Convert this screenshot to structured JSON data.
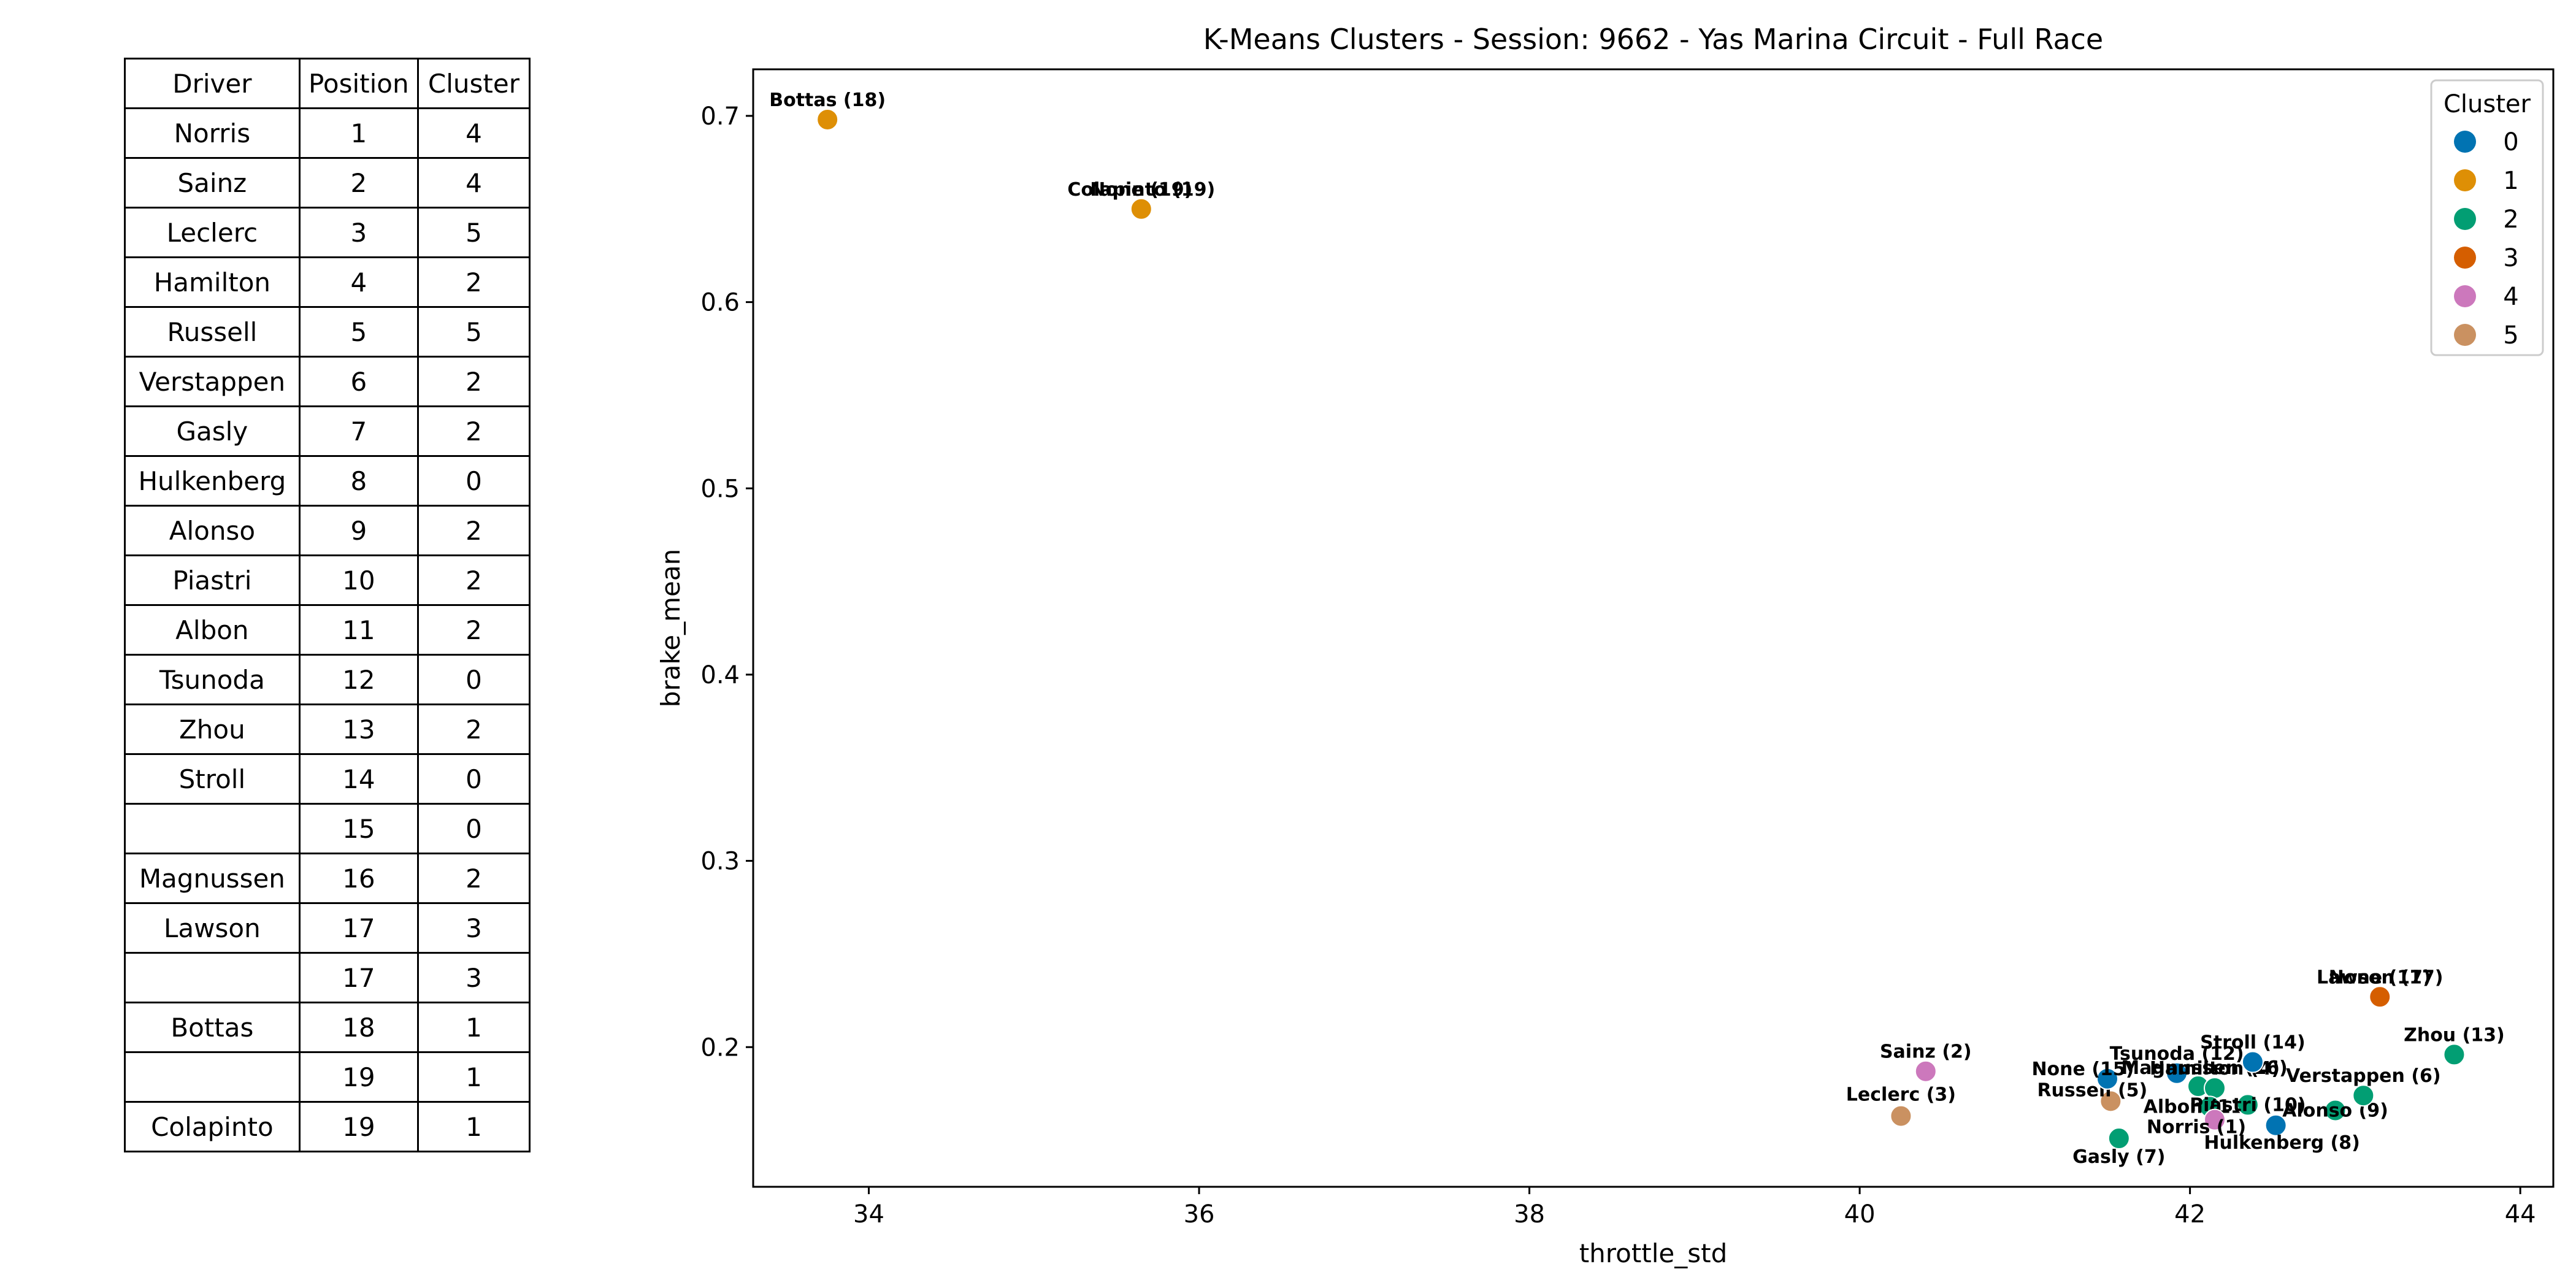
{
  "table": {
    "headers": [
      "Driver",
      "Position",
      "Cluster"
    ],
    "rows": [
      [
        "Norris",
        "1",
        "4"
      ],
      [
        "Sainz",
        "2",
        "4"
      ],
      [
        "Leclerc",
        "3",
        "5"
      ],
      [
        "Hamilton",
        "4",
        "2"
      ],
      [
        "Russell",
        "5",
        "5"
      ],
      [
        "Verstappen",
        "6",
        "2"
      ],
      [
        "Gasly",
        "7",
        "2"
      ],
      [
        "Hulkenberg",
        "8",
        "0"
      ],
      [
        "Alonso",
        "9",
        "2"
      ],
      [
        "Piastri",
        "10",
        "2"
      ],
      [
        "Albon",
        "11",
        "2"
      ],
      [
        "Tsunoda",
        "12",
        "0"
      ],
      [
        "Zhou",
        "13",
        "2"
      ],
      [
        "Stroll",
        "14",
        "0"
      ],
      [
        "",
        "15",
        "0"
      ],
      [
        "Magnussen",
        "16",
        "2"
      ],
      [
        "Lawson",
        "17",
        "3"
      ],
      [
        "",
        "17",
        "3"
      ],
      [
        "Bottas",
        "18",
        "1"
      ],
      [
        "",
        "19",
        "1"
      ],
      [
        "Colapinto",
        "19",
        "1"
      ]
    ]
  },
  "chart_data": {
    "type": "scatter",
    "title": "K-Means Clusters - Session: 9662 - Yas Marina Circuit - Full Race",
    "xlabel": "throttle_std",
    "ylabel": "brake_mean",
    "xlim": [
      33.3,
      44.2
    ],
    "ylim": [
      0.125,
      0.725
    ],
    "xticks": [
      "34",
      "36",
      "38",
      "40",
      "42",
      "44"
    ],
    "yticks": [
      "0.2",
      "0.3",
      "0.4",
      "0.5",
      "0.6",
      "0.7"
    ],
    "legend": {
      "title": "Cluster",
      "placement": "top-right",
      "entries": [
        {
          "label": "0",
          "color": "#0173b2"
        },
        {
          "label": "1",
          "color": "#de8f05"
        },
        {
          "label": "2",
          "color": "#029e73"
        },
        {
          "label": "3",
          "color": "#d55e00"
        },
        {
          "label": "4",
          "color": "#cc78bc"
        },
        {
          "label": "5",
          "color": "#ca9161"
        }
      ]
    },
    "points": [
      {
        "label": "Bottas (18)",
        "x": 33.75,
        "y": 0.698,
        "cluster": 1
      },
      {
        "label": "None (19)",
        "x": 35.65,
        "y": 0.65,
        "cluster": 1
      },
      {
        "label": "Colapinto (19)",
        "x": 35.65,
        "y": 0.65,
        "cluster": 1
      },
      {
        "label": "Sainz (2)",
        "x": 40.4,
        "y": 0.187,
        "cluster": 4
      },
      {
        "label": "Leclerc (3)",
        "x": 40.25,
        "y": 0.163,
        "cluster": 5
      },
      {
        "label": "Russell (5)",
        "x": 41.52,
        "y": 0.171,
        "cluster": 5
      },
      {
        "label": "Gasly (7)",
        "x": 41.57,
        "y": 0.151,
        "cluster": 2
      },
      {
        "label": "None (15)",
        "x": 41.5,
        "y": 0.183,
        "cluster": 0
      },
      {
        "label": "Tsunoda (12)",
        "x": 41.92,
        "y": 0.186,
        "cluster": 0
      },
      {
        "label": "Magnussen (16)",
        "x": 42.05,
        "y": 0.179,
        "cluster": 2
      },
      {
        "label": "Hamilton (4)",
        "x": 42.15,
        "y": 0.178,
        "cluster": 2
      },
      {
        "label": "Stroll (14)",
        "x": 42.38,
        "y": 0.192,
        "cluster": 0
      },
      {
        "label": "Albon (11)",
        "x": 42.12,
        "y": 0.168,
        "cluster": 2
      },
      {
        "label": "Piastri (10)",
        "x": 42.35,
        "y": 0.169,
        "cluster": 2
      },
      {
        "label": "Norris (1)",
        "x": 42.15,
        "y": 0.161,
        "cluster": 4
      },
      {
        "label": "Hulkenberg (8)",
        "x": 42.52,
        "y": 0.158,
        "cluster": 0
      },
      {
        "label": "Alonso (9)",
        "x": 42.88,
        "y": 0.166,
        "cluster": 2
      },
      {
        "label": "Verstappen (6)",
        "x": 43.05,
        "y": 0.174,
        "cluster": 2
      },
      {
        "label": "Lawson (17)",
        "x": 43.15,
        "y": 0.227,
        "cluster": 3
      },
      {
        "label": "None (17)",
        "x": 43.15,
        "y": 0.227,
        "cluster": 3
      },
      {
        "label": "Zhou (13)",
        "x": 43.6,
        "y": 0.196,
        "cluster": 2
      }
    ]
  }
}
